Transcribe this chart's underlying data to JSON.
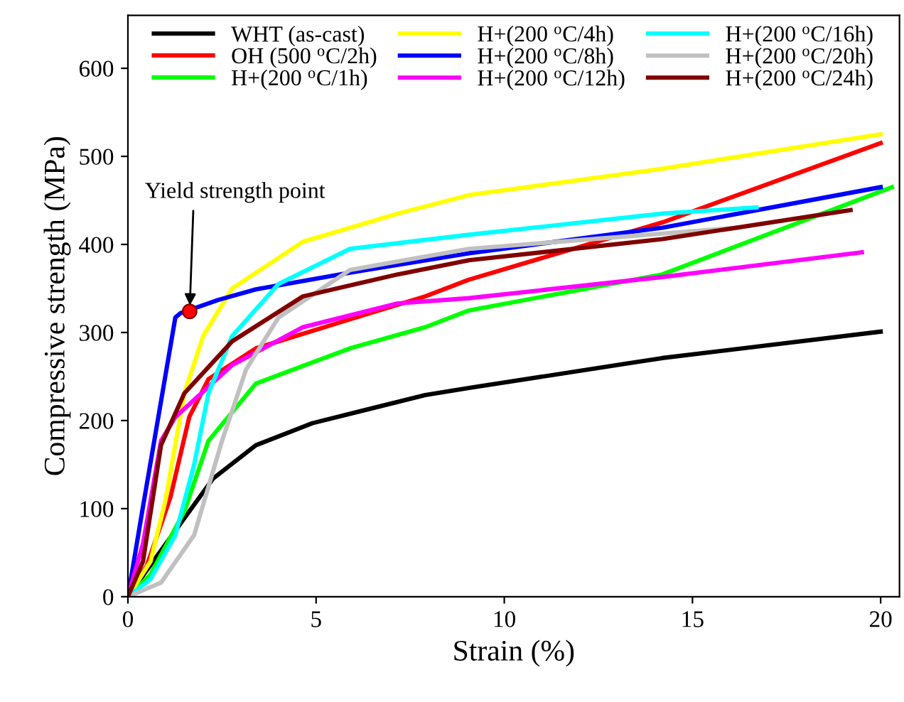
{
  "chart_data": {
    "type": "line",
    "xlabel": "Strain (%)",
    "ylabel": "Compressive strength (MPa)",
    "xlim": [
      0,
      20.5
    ],
    "ylim": [
      0,
      660
    ],
    "xticks": [
      0,
      5,
      10,
      15,
      20
    ],
    "yticks": [
      0,
      100,
      200,
      300,
      400,
      500,
      600
    ],
    "legend": "top",
    "grid": false,
    "line_style": "solid",
    "marker": "none",
    "annotations": [
      {
        "text": "Yield strength point",
        "x": 1.64,
        "y": 324
      }
    ],
    "series": [
      {
        "name": "WHT (as-cast)",
        "color": "#000000",
        "x": [
          0,
          0.5,
          1.26,
          2.26,
          3.4,
          4.9,
          7.9,
          9.06,
          14.2,
          20
        ],
        "values": [
          0,
          30,
          75,
          134,
          172,
          197,
          229,
          237,
          271,
          301
        ]
      },
      {
        "name": "OH (500 $^{o}$C/2h)",
        "color": "#ff0000",
        "x": [
          0,
          0.5,
          1.13,
          1.63,
          2.14,
          3.4,
          5.9,
          7.9,
          9.06,
          14.2,
          20
        ],
        "values": [
          0,
          35,
          113,
          204,
          247,
          282,
          315,
          341,
          360,
          425,
          515
        ]
      },
      {
        "name": "H+(200 $^{o}$C/1h)",
        "color": "#00ff00",
        "x": [
          0,
          0.6,
          1.5,
          2.14,
          3.4,
          5.9,
          7.9,
          9.06,
          14.2,
          20.3
        ],
        "values": [
          0,
          25,
          97,
          177,
          242,
          282,
          306,
          325,
          366,
          465
        ]
      },
      {
        "name": "H+(200 $^{o}$C/4h)",
        "color": "#ffff00",
        "x": [
          0,
          0.6,
          1.0,
          1.5,
          2.0,
          2.77,
          4.65,
          7.17,
          9.06,
          14.2,
          20
        ],
        "values": [
          0,
          40,
          110,
          231,
          296,
          350,
          403,
          435,
          456,
          486,
          525
        ]
      },
      {
        "name": "H+(200 $^{o}$C/8h)",
        "color": "#0000ff",
        "x": [
          0,
          0.38,
          1.26,
          1.4,
          2.4,
          3.4,
          5.9,
          9.06,
          14.2,
          20
        ],
        "values": [
          0,
          97,
          317,
          322,
          337,
          349,
          368,
          390,
          419,
          465
        ]
      },
      {
        "name": "H+(200 $^{o}$C/12h)",
        "color": "#ff00ff",
        "x": [
          0,
          0.4,
          0.88,
          1.26,
          2.77,
          4.65,
          7.17,
          9.06,
          14.2,
          19.5
        ],
        "values": [
          0,
          60,
          177,
          204,
          263,
          306,
          333,
          339,
          363,
          391
        ]
      },
      {
        "name": "H+(200 $^{o}$C/16h)",
        "color": "#00ffff",
        "x": [
          0,
          0.6,
          1.26,
          1.76,
          2.14,
          2.77,
          4.0,
          5.9,
          9.06,
          14.2,
          16.7
        ],
        "values": [
          0,
          20,
          70,
          150,
          231,
          296,
          355,
          395,
          411,
          435,
          442
        ]
      },
      {
        "name": "H+(200 $^{o}$C/20h)",
        "color": "#c0c0c0",
        "x": [
          0,
          0.88,
          1.76,
          2.5,
          3.14,
          4.0,
          5.9,
          9.06,
          16.2
        ],
        "values": [
          0,
          16,
          70,
          177,
          258,
          317,
          371,
          395,
          419
        ]
      },
      {
        "name": "H+(200 $^{o}$C/24h)",
        "color": "#800000",
        "x": [
          0,
          0.4,
          0.88,
          1.5,
          2.77,
          4.65,
          7.17,
          9.06,
          14.2,
          19.2
        ],
        "values": [
          0,
          40,
          172,
          231,
          290,
          341,
          366,
          382,
          406,
          439
        ]
      },
      {
        "type": "scatter",
        "color": "#ff0000",
        "marker": "circle",
        "x": [
          1.64
        ],
        "values": [
          324
        ]
      }
    ]
  }
}
